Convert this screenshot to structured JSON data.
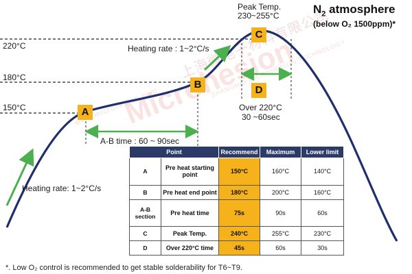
{
  "title": {
    "main": "N",
    "sub": "2",
    "rest": " atmosphere",
    "note": "(below O₂ 1500ppm)*"
  },
  "temps": {
    "t220": "220°C",
    "t180": "180°C",
    "t150": "150°C"
  },
  "points": {
    "a": "A",
    "b": "B",
    "c": "C",
    "d": "D"
  },
  "peak": {
    "line1": "Peak Temp.",
    "line2": "230~255°C"
  },
  "heating_rate_top": "Heating rate : 1~2°C/s",
  "heating_rate_left": "Heating rate: 1~2°C/s",
  "ab_time": "A-B time : 60 ~ 90sec",
  "over220": {
    "line1": "Over 220°C",
    "line2": "30 ~60sec"
  },
  "watermark": {
    "main": "Microhesion",
    "url": "www.microhesion.com",
    "cn": "上海微电子材料有限公司",
    "en": "SHANGHAI MICROHESION TECHNOLOGY"
  },
  "table": {
    "headers": [
      "Point",
      "Recommend",
      "Maximum",
      "Lower limit"
    ],
    "rows": [
      {
        "point": "A",
        "desc": "Pre heat starting point",
        "rec": "150°C",
        "max": "160°C",
        "low": "140°C"
      },
      {
        "point": "B",
        "desc": "Pre heat end point",
        "rec": "180°C",
        "max": "200°C",
        "low": "160°C"
      },
      {
        "point": "A-B section",
        "desc": "Pre heat time",
        "rec": "75s",
        "max": "90s",
        "low": "60s"
      },
      {
        "point": "C",
        "desc": "Peak Temp.",
        "rec": "240°C",
        "max": "255°C",
        "low": "230°C"
      },
      {
        "point": "D",
        "desc": "Over 220°C time",
        "rec": "45s",
        "max": "60s",
        "low": "30s"
      }
    ]
  },
  "footnote": "*.  Low O₂ control is recommended to get stable solderability for T6~T9.",
  "colors": {
    "curve": "#1f2f6b",
    "arrow": "#4caf50",
    "marker": "#f6b21a",
    "table_header": "#2b3a67"
  }
}
